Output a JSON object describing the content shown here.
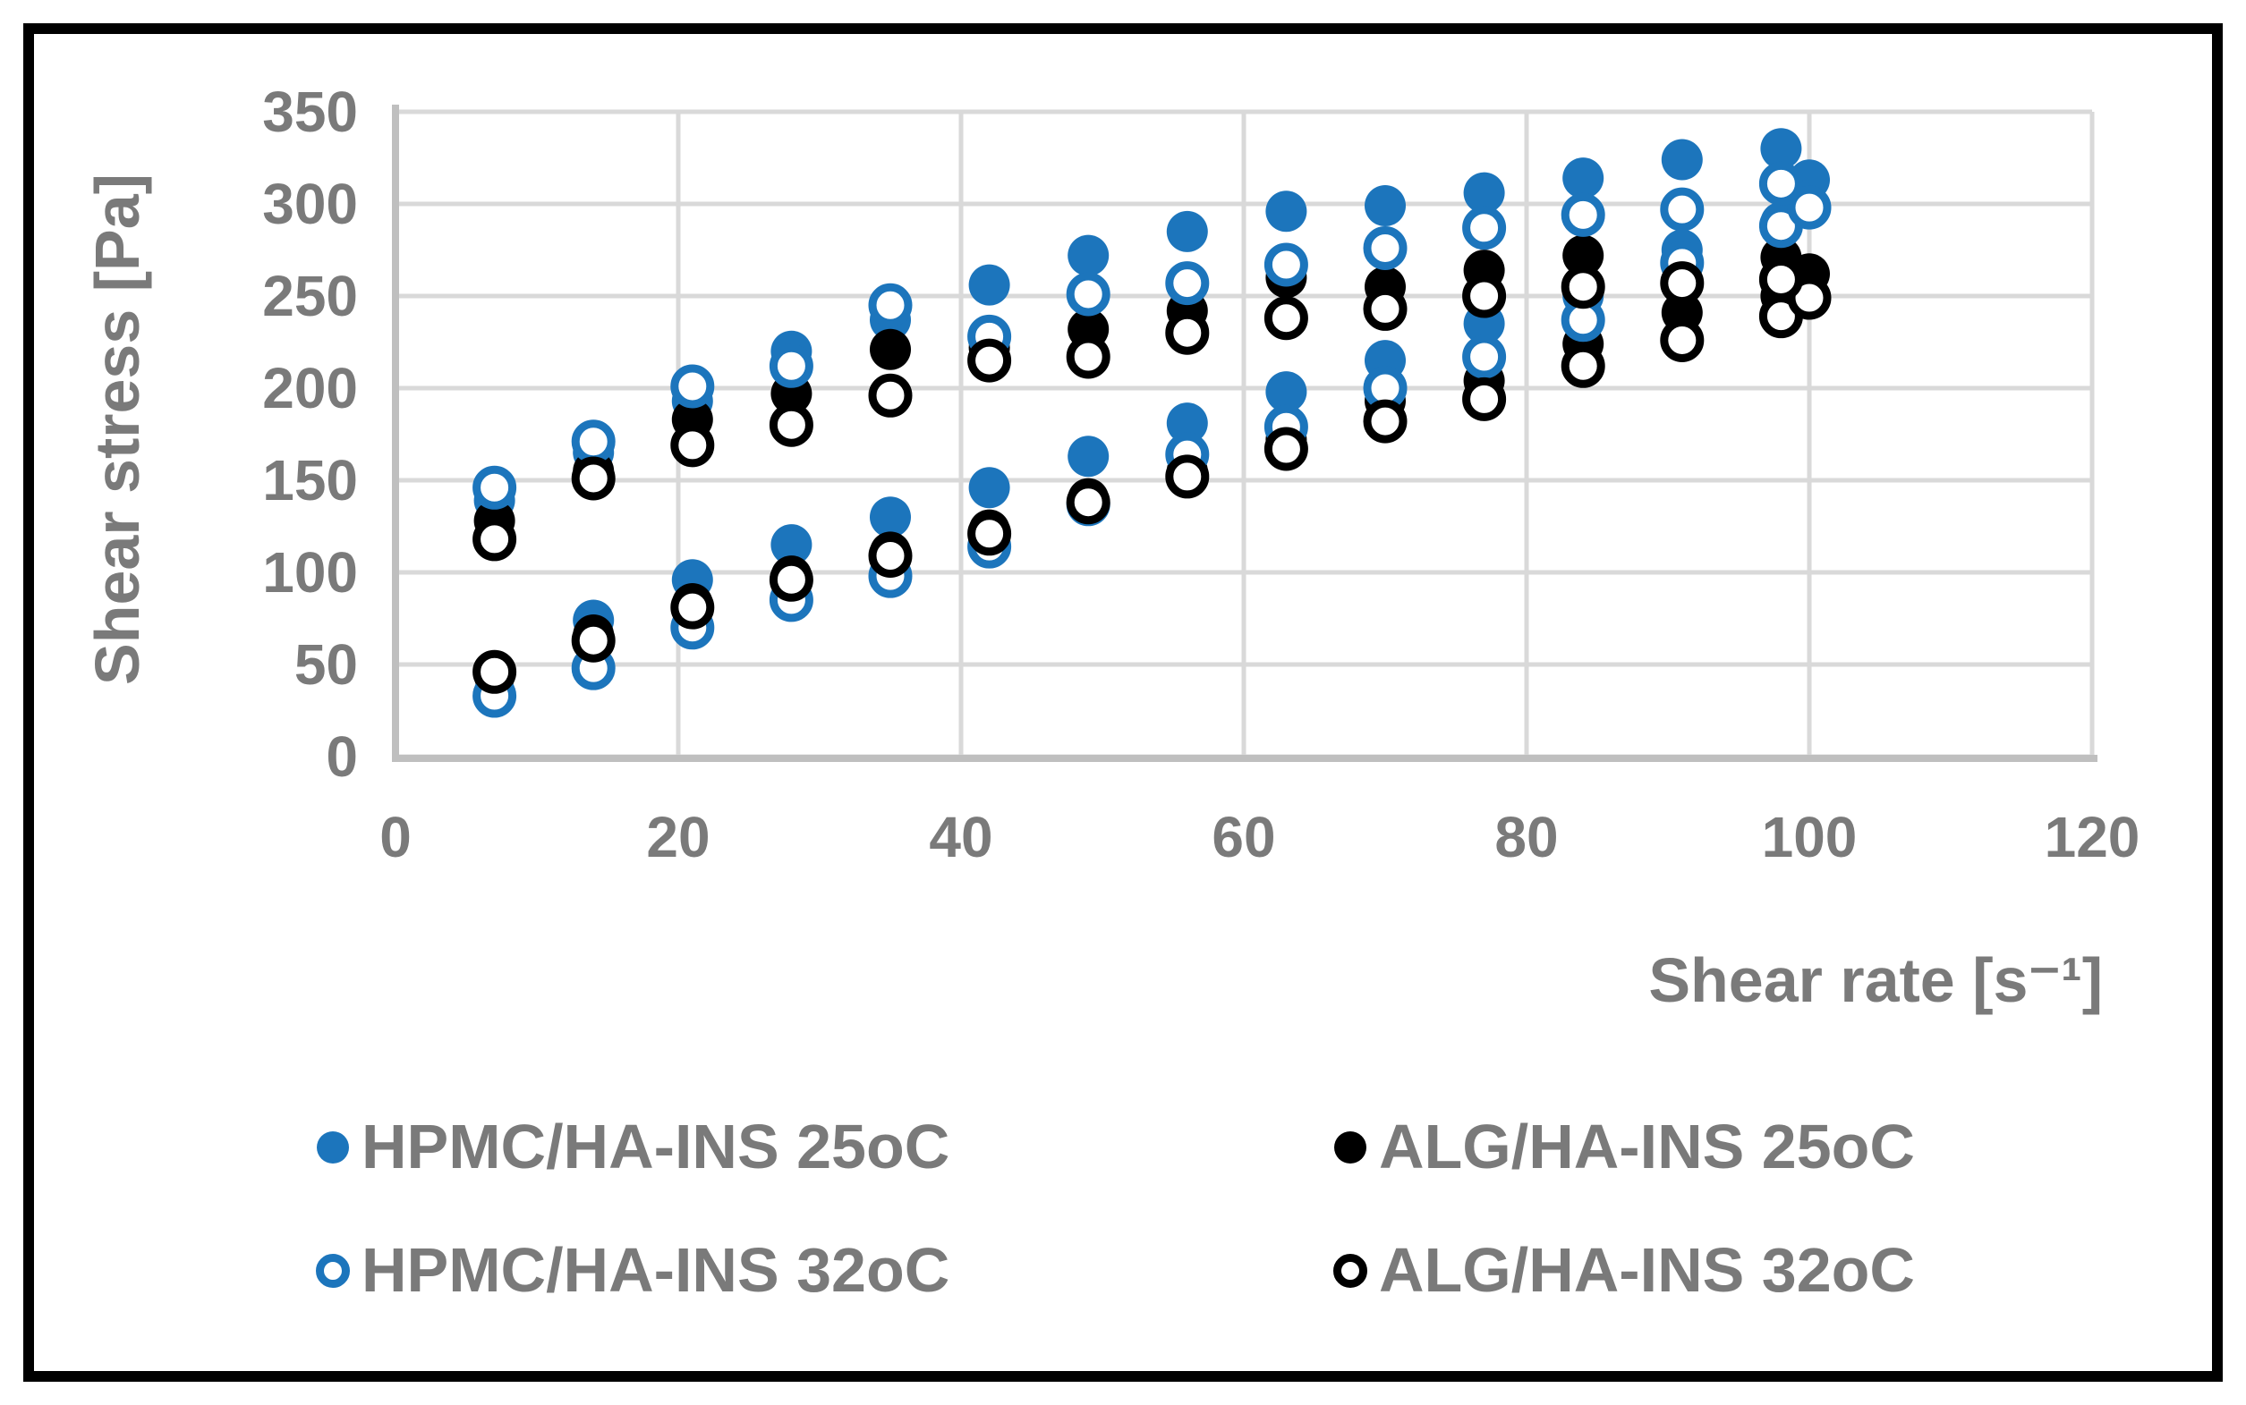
{
  "figure": {
    "background": "#ffffff",
    "border_color": "#000000",
    "text_color": "#7a7a7a",
    "grid_color": "#d9d9d9",
    "axis_color": "#bfbfbf"
  },
  "chart_data": {
    "type": "scatter",
    "title": "",
    "xlabel": "Shear rate [s⁻¹]",
    "ylabel": "Shear stress [Pa]",
    "xlim": [
      0,
      120
    ],
    "ylim": [
      0,
      350
    ],
    "x_ticks": [
      0,
      20,
      40,
      60,
      80,
      100,
      120
    ],
    "y_ticks": [
      0,
      50,
      100,
      150,
      200,
      250,
      300,
      350
    ],
    "grid": true,
    "legend_position": "bottom",
    "marker_styles": {
      "filled": "solid circle",
      "open": "white circle with colored ring"
    },
    "series": [
      {
        "name": "HPMC/HA-INS 25oC",
        "color": "#1c75bc",
        "marker": "filled",
        "up": {
          "x": [
            7,
            14,
            21,
            28,
            35,
            42,
            49,
            56,
            63,
            70,
            77,
            84,
            91,
            98,
            100
          ],
          "y": [
            35,
            74,
            96,
            115,
            130,
            146,
            163,
            181,
            198,
            215,
            235,
            250,
            275,
            290,
            313
          ]
        },
        "down": {
          "x": [
            98,
            91,
            84,
            77,
            70,
            63,
            56,
            49,
            42,
            35,
            28,
            21,
            14,
            7
          ],
          "y": [
            330,
            324,
            314,
            306,
            299,
            296,
            285,
            272,
            256,
            237,
            220,
            193,
            165,
            139
          ]
        }
      },
      {
        "name": "ALG/HA-INS 25oC",
        "color": "#000000",
        "marker": "filled",
        "up": {
          "x": [
            7,
            14,
            21,
            28,
            35,
            42,
            49,
            56,
            63,
            70,
            77,
            84,
            91,
            98,
            100
          ],
          "y": [
            44,
            66,
            83,
            98,
            111,
            123,
            140,
            155,
            172,
            193,
            204,
            224,
            241,
            250,
            262
          ]
        },
        "down": {
          "x": [
            98,
            91,
            84,
            77,
            70,
            63,
            56,
            49,
            42,
            35,
            28,
            21,
            14,
            7
          ],
          "y": [
            271,
            266,
            272,
            264,
            255,
            260,
            242,
            232,
            222,
            221,
            197,
            183,
            155,
            128
          ]
        }
      },
      {
        "name": "HPMC/HA-INS 32oC",
        "color": "#1c75bc",
        "marker": "open",
        "up": {
          "x": [
            7,
            14,
            21,
            28,
            35,
            42,
            49,
            56,
            63,
            70,
            77,
            84,
            91,
            98,
            100
          ],
          "y": [
            33,
            48,
            70,
            85,
            98,
            114,
            137,
            164,
            179,
            200,
            217,
            237,
            268,
            288,
            298
          ]
        },
        "down": {
          "x": [
            98,
            91,
            84,
            77,
            70,
            63,
            56,
            49,
            42,
            35,
            28,
            21,
            14,
            7
          ],
          "y": [
            311,
            297,
            294,
            287,
            276,
            267,
            257,
            251,
            228,
            245,
            212,
            201,
            171,
            146
          ]
        }
      },
      {
        "name": "ALG/HA-INS 32oC",
        "color": "#000000",
        "marker": "open",
        "up": {
          "x": [
            7,
            14,
            21,
            28,
            35,
            42,
            49,
            56,
            63,
            70,
            77,
            84,
            91,
            98,
            100
          ],
          "y": [
            46,
            63,
            81,
            96,
            109,
            121,
            138,
            152,
            167,
            182,
            194,
            212,
            226,
            239,
            249
          ]
        },
        "down": {
          "x": [
            98,
            91,
            84,
            77,
            70,
            63,
            56,
            49,
            42,
            35,
            28,
            21,
            14,
            7
          ],
          "y": [
            259,
            257,
            255,
            250,
            243,
            238,
            230,
            217,
            215,
            196,
            180,
            169,
            151,
            118
          ]
        }
      }
    ]
  }
}
